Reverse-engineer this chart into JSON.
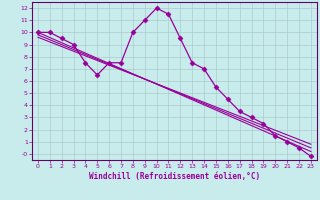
{
  "title": "",
  "xlabel": "Windchill (Refroidissement éolien,°C)",
  "background_color": "#c8ecec",
  "line_color": "#990099",
  "grid_color": "#aacccc",
  "spine_color": "#660066",
  "xlim": [
    -0.5,
    23.5
  ],
  "ylim": [
    -0.5,
    12.5
  ],
  "xticks": [
    0,
    1,
    2,
    3,
    4,
    5,
    6,
    7,
    8,
    9,
    10,
    11,
    12,
    13,
    14,
    15,
    16,
    17,
    18,
    19,
    20,
    21,
    22,
    23
  ],
  "yticks": [
    0,
    1,
    2,
    3,
    4,
    5,
    6,
    7,
    8,
    9,
    10,
    11,
    12
  ],
  "ytick_labels": [
    "-0",
    "1",
    "2",
    "3",
    "4",
    "5",
    "6",
    "7",
    "8",
    "9",
    "10",
    "11",
    "12"
  ],
  "line1_x": [
    0,
    1,
    2,
    3,
    4,
    5,
    6,
    7,
    8,
    9,
    10,
    11,
    12,
    13,
    14,
    15,
    16,
    17,
    18,
    19,
    20,
    21,
    22,
    23
  ],
  "line1_y": [
    10,
    10,
    9.5,
    9.0,
    7.5,
    6.5,
    7.5,
    7.5,
    10,
    11,
    12,
    11.5,
    9.5,
    7.5,
    7.0,
    5.5,
    4.5,
    3.5,
    3.0,
    2.5,
    1.5,
    1.0,
    0.5,
    -0.2
  ],
  "line2_x": [
    0,
    23
  ],
  "line2_y": [
    10.0,
    0.2
  ],
  "line3_x": [
    0,
    23
  ],
  "line3_y": [
    9.8,
    0.5
  ],
  "line4_x": [
    0,
    23
  ],
  "line4_y": [
    9.6,
    0.8
  ]
}
